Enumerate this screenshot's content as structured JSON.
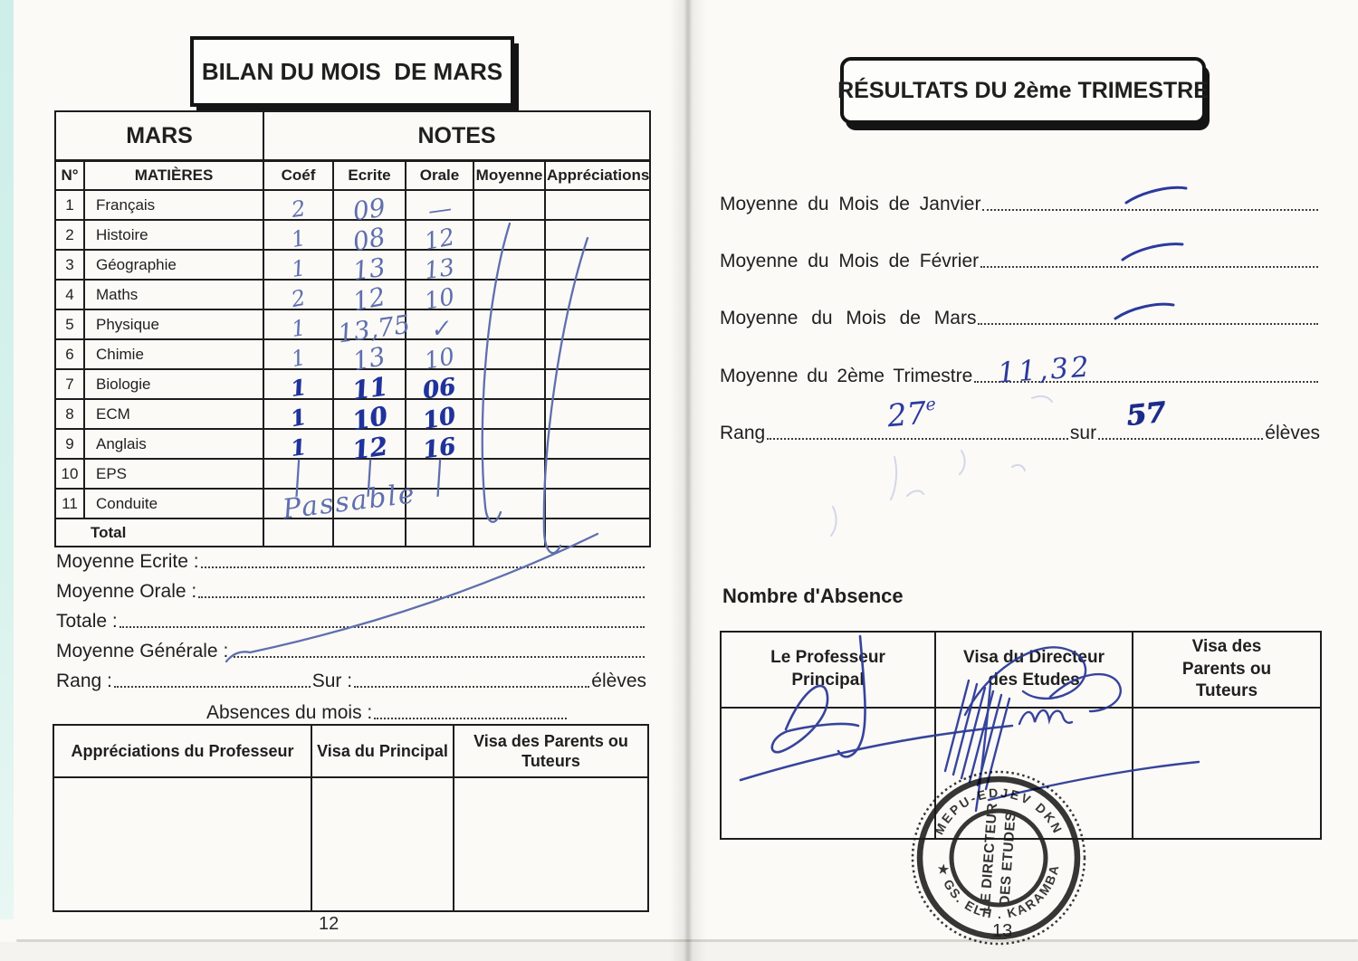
{
  "colors": {
    "paper": "#fbfaf7",
    "ink_dark": "#20339b",
    "ink_light": "#5f6fae",
    "stamp_black": "#1a1a1a",
    "cover_teal": "#cdeee9"
  },
  "left_page": {
    "title": "BILAN DU MOIS  DE MARS",
    "table": {
      "month_header": "MARS",
      "notes_header": "NOTES",
      "columns": [
        "N°",
        "MATIÈRES",
        "Coéf",
        "Ecrite",
        "Orale",
        "Moyenne",
        "Appréciations"
      ],
      "rows": [
        {
          "num": "1",
          "subject": "Français",
          "coef": "2",
          "ecrite": "09",
          "orale": "—",
          "ink": "light"
        },
        {
          "num": "2",
          "subject": "Histoire",
          "coef": "1",
          "ecrite": "08",
          "orale": "12",
          "ink": "light"
        },
        {
          "num": "3",
          "subject": "Géographie",
          "coef": "1",
          "ecrite": "13",
          "orale": "13",
          "ink": "light"
        },
        {
          "num": "4",
          "subject": "Maths",
          "coef": "2",
          "ecrite": "12",
          "orale": "10",
          "ink": "light"
        },
        {
          "num": "5",
          "subject": "Physique",
          "coef": "1",
          "ecrite": "13,75",
          "orale": "✓",
          "ink": "light"
        },
        {
          "num": "6",
          "subject": "Chimie",
          "coef": "1",
          "ecrite": "13",
          "orale": "10",
          "ink": "light"
        },
        {
          "num": "7",
          "subject": "Biologie",
          "coef": "1",
          "ecrite": "11",
          "orale": "06",
          "ink": "dark"
        },
        {
          "num": "8",
          "subject": "ECM",
          "coef": "1",
          "ecrite": "10",
          "orale": "10",
          "ink": "dark"
        },
        {
          "num": "9",
          "subject": "Anglais",
          "coef": "1",
          "ecrite": "12",
          "orale": "16",
          "ink": "dark"
        },
        {
          "num": "10",
          "subject": "EPS",
          "coef": "/",
          "ecrite": "/",
          "orale": "/",
          "ink": "light"
        },
        {
          "num": "11",
          "subject": "Conduite",
          "coef": "",
          "ecrite": "",
          "orale": "",
          "ink": "light"
        }
      ],
      "conduite_note": "Passable",
      "total_label": "Total"
    },
    "summary": {
      "moyenne_ecrite_label": "Moyenne Ecrite :",
      "moyenne_orale_label": "Moyenne Orale :",
      "totale_label": "Totale :",
      "moyenne_generale_label": "Moyenne Générale :",
      "rang_label": "Rang :",
      "sur_label": "Sur :",
      "eleves_label": "élèves",
      "absences_label": "Absences du mois :"
    },
    "bottom_table_headers": [
      "Appréciations du Professeur",
      "Visa du Principal",
      "Visa des Parents ou Tuteurs"
    ],
    "page_number": "12"
  },
  "right_page": {
    "title": "RÉSULTATS DU 2ème TRIMESTRE",
    "lines": [
      {
        "label": "Moyenne du Mois de Janvier",
        "value": ""
      },
      {
        "label": "Moyenne du Mois de Février",
        "value": ""
      },
      {
        "label": "Moyenne du Mois de Mars",
        "value": ""
      },
      {
        "label": "Moyenne du 2ème Trimestre",
        "value": "11,32"
      }
    ],
    "rang": {
      "label": "Rang",
      "value": "27",
      "value_suffix": "e",
      "sur_label": "sur",
      "sur_value": "57",
      "eleves_label": "élèves"
    },
    "absence_heading": "Nombre d'Absence",
    "visa_table_headers": [
      "Le Professeur Principal",
      "Visa du Directeur des Etudes",
      "Visa des Parents ou Tuteurs"
    ],
    "stamp": {
      "line1": "LE DIRECTEUR",
      "line2": "DES ETUDES",
      "ring_top": "MEPU-EDJEV DKN",
      "ring_bottom": "★ GS. ELH . KARAMBA"
    },
    "page_number": "13"
  }
}
